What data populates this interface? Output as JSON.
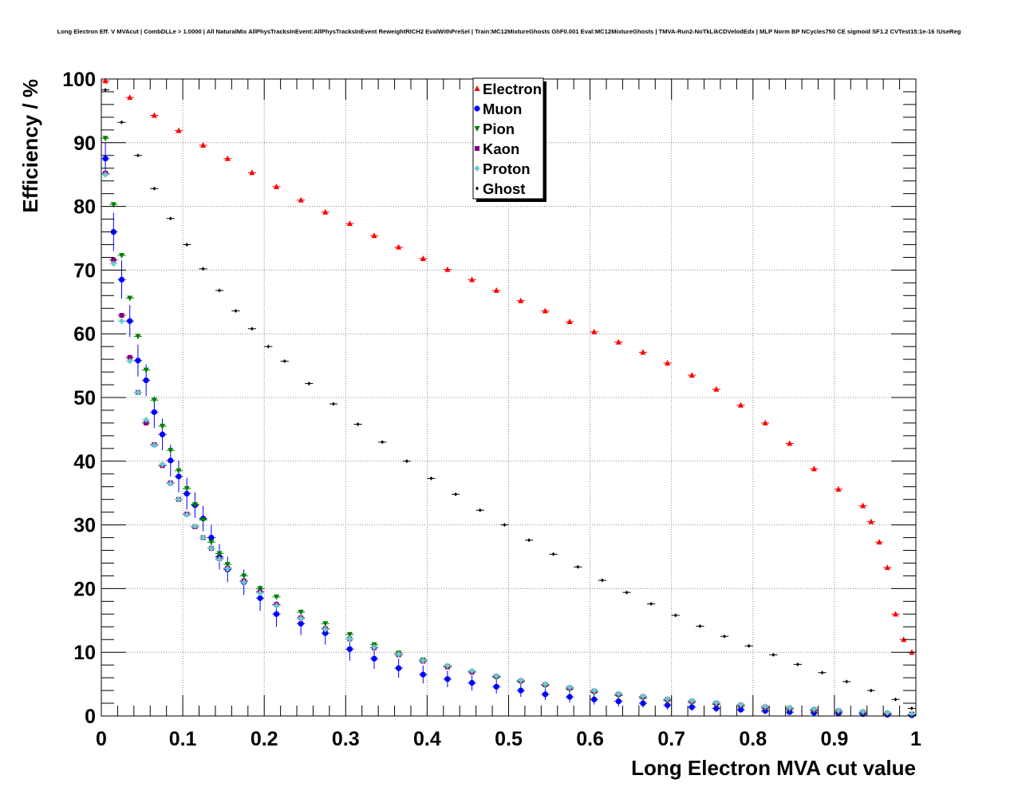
{
  "chart_data": {
    "type": "scatter",
    "title": "Long Electron Eff. V MVAcut | CombDLLe > 1.0000 | All NaturalMix AllPhysTracksInEvent:AllPhysTracksInEvent ReweightRICH2 EvalWithPreSel | Train:MC12MixtureGhosts GhF0.001 Eval:MC12MixtureGhosts | TMVA-Run2-NoTkLikCDVelodEdx | MLP Norm BP NCycles750 CE sigmoid SF1.2 CVTest15:1e-16 !UseReg",
    "xlabel": "Long Electron MVA cut value",
    "ylabel": "Efficiency / %",
    "xlim": [
      0,
      1
    ],
    "ylim": [
      0,
      100
    ],
    "x_ticks": [
      "0",
      "0.1",
      "0.2",
      "0.3",
      "0.4",
      "0.5",
      "0.6",
      "0.7",
      "0.8",
      "0.9",
      "1"
    ],
    "y_ticks": [
      "0",
      "10",
      "20",
      "30",
      "40",
      "50",
      "60",
      "70",
      "80",
      "90",
      "100"
    ],
    "grid": true,
    "legend_position": "top-center",
    "series": [
      {
        "name": "Electron",
        "color": "#ff0000",
        "marker": "triangle-up",
        "x": [
          0.005,
          0.035,
          0.065,
          0.095,
          0.125,
          0.155,
          0.185,
          0.215,
          0.245,
          0.275,
          0.305,
          0.335,
          0.365,
          0.395,
          0.425,
          0.455,
          0.485,
          0.515,
          0.545,
          0.575,
          0.605,
          0.635,
          0.665,
          0.695,
          0.725,
          0.755,
          0.785,
          0.815,
          0.845,
          0.875,
          0.905,
          0.935,
          0.945,
          0.955,
          0.965,
          0.975,
          0.985,
          0.995
        ],
        "y": [
          99.7,
          97.1,
          94.3,
          91.9,
          89.6,
          87.5,
          85.3,
          83.1,
          81.0,
          79.1,
          77.3,
          75.4,
          73.6,
          71.8,
          70.1,
          68.5,
          66.8,
          65.2,
          63.6,
          61.9,
          60.3,
          58.7,
          57.1,
          55.4,
          53.5,
          51.3,
          48.8,
          46.0,
          42.8,
          38.8,
          35.6,
          33.0,
          30.5,
          27.3,
          23.3,
          16.0,
          12.0,
          10.0
        ],
        "yerr": [
          0.1,
          0.1,
          0.1,
          0.1,
          0.1,
          0.1,
          0.1,
          0.1,
          0.1,
          0.1,
          0.1,
          0.1,
          0.1,
          0.1,
          0.1,
          0.1,
          0.1,
          0.1,
          0.1,
          0.1,
          0.1,
          0.1,
          0.1,
          0.1,
          0.1,
          0.1,
          0.1,
          0.1,
          0.1,
          0.1,
          0.1,
          0.2,
          0.2,
          0.2,
          0.3,
          0.3,
          0.3,
          0.3
        ]
      },
      {
        "name": "Muon",
        "color": "#0000ff",
        "marker": "circle",
        "x": [
          0.005,
          0.015,
          0.025,
          0.035,
          0.045,
          0.055,
          0.065,
          0.075,
          0.085,
          0.095,
          0.105,
          0.115,
          0.125,
          0.135,
          0.145,
          0.155,
          0.175,
          0.195,
          0.215,
          0.245,
          0.275,
          0.305,
          0.335,
          0.365,
          0.395,
          0.425,
          0.455,
          0.485,
          0.515,
          0.545,
          0.575,
          0.605,
          0.635,
          0.665,
          0.695,
          0.725,
          0.755,
          0.785,
          0.815,
          0.845,
          0.875,
          0.905,
          0.935,
          0.965,
          0.995
        ],
        "y": [
          87.5,
          76.0,
          68.5,
          62.0,
          55.8,
          52.7,
          47.7,
          44.2,
          40.1,
          37.6,
          34.9,
          33.1,
          31.0,
          28.0,
          25.0,
          23.0,
          21.0,
          18.5,
          16.0,
          14.5,
          13.0,
          10.5,
          9.0,
          7.5,
          6.5,
          5.8,
          5.2,
          4.6,
          4.0,
          3.4,
          3.0,
          2.6,
          2.3,
          2.0,
          1.7,
          1.4,
          1.2,
          1.0,
          0.8,
          0.6,
          0.5,
          0.4,
          0.3,
          0.2,
          0.1
        ],
        "yerr": [
          2.5,
          3.0,
          3.0,
          2.5,
          2.5,
          2.5,
          2.5,
          2.5,
          2.5,
          2.5,
          2.5,
          2.0,
          2.0,
          2.0,
          2.0,
          2.0,
          2.0,
          2.0,
          2.0,
          1.8,
          1.8,
          1.8,
          1.6,
          1.5,
          1.4,
          1.3,
          1.2,
          1.1,
          1.0,
          0.9,
          0.9,
          0.8,
          0.8,
          0.7,
          0.7,
          0.6,
          0.6,
          0.5,
          0.5,
          0.4,
          0.4,
          0.3,
          0.3,
          0.3,
          0.2
        ]
      },
      {
        "name": "Pion",
        "color": "#008000",
        "marker": "triangle-down",
        "x": [
          0.005,
          0.015,
          0.025,
          0.035,
          0.045,
          0.055,
          0.065,
          0.075,
          0.085,
          0.095,
          0.105,
          0.115,
          0.125,
          0.135,
          0.145,
          0.155,
          0.175,
          0.195,
          0.215,
          0.245,
          0.275,
          0.305,
          0.335,
          0.365,
          0.395,
          0.425,
          0.455,
          0.485,
          0.515,
          0.545,
          0.575,
          0.605,
          0.635,
          0.665,
          0.695,
          0.725,
          0.755,
          0.785,
          0.815,
          0.845,
          0.875,
          0.905,
          0.935,
          0.965,
          0.995
        ],
        "y": [
          90.7,
          80.3,
          72.3,
          65.6,
          59.6,
          54.3,
          49.6,
          45.5,
          41.7,
          38.5,
          35.7,
          33.2,
          30.8,
          27.3,
          25.5,
          23.8,
          22.0,
          20.0,
          18.7,
          16.3,
          14.5,
          12.8,
          11.2,
          9.9,
          8.8,
          7.8,
          6.9,
          6.1,
          5.4,
          4.8,
          4.2,
          3.7,
          3.2,
          2.8,
          2.4,
          2.1,
          1.8,
          1.5,
          1.2,
          1.0,
          0.8,
          0.6,
          0.4,
          0.3,
          0.2
        ],
        "yerr": [
          0.3,
          0.3,
          0.3,
          0.3,
          0.3,
          0.3,
          0.3,
          0.3,
          0.3,
          0.3,
          0.3,
          0.3,
          0.3,
          0.3,
          0.3,
          0.3,
          0.2,
          0.2,
          0.2,
          0.2,
          0.2,
          0.2,
          0.2,
          0.2,
          0.2,
          0.2,
          0.2,
          0.2,
          0.2,
          0.2,
          0.2,
          0.2,
          0.2,
          0.1,
          0.1,
          0.1,
          0.1,
          0.1,
          0.1,
          0.1,
          0.1,
          0.1,
          0.1,
          0.1,
          0.1
        ]
      },
      {
        "name": "Kaon",
        "color": "#800080",
        "marker": "square",
        "x": [
          0.005,
          0.015,
          0.025,
          0.035,
          0.045,
          0.055,
          0.065,
          0.075,
          0.085,
          0.095,
          0.105,
          0.115,
          0.125,
          0.135,
          0.145,
          0.155,
          0.175,
          0.195,
          0.215,
          0.245,
          0.275,
          0.305,
          0.335,
          0.365,
          0.395,
          0.425,
          0.455,
          0.485,
          0.515,
          0.545,
          0.575,
          0.605,
          0.635,
          0.665,
          0.695,
          0.725,
          0.755,
          0.785,
          0.815,
          0.845,
          0.875,
          0.905,
          0.935,
          0.965,
          0.995
        ],
        "y": [
          85.2,
          71.6,
          62.9,
          56.3,
          50.8,
          46.0,
          42.6,
          39.3,
          36.6,
          34.0,
          31.7,
          29.7,
          28.0,
          26.3,
          24.7,
          23.2,
          21.2,
          19.5,
          17.5,
          15.4,
          13.7,
          12.1,
          10.7,
          9.6,
          8.6,
          7.7,
          6.9,
          6.2,
          5.5,
          4.9,
          4.4,
          3.9,
          3.4,
          3.0,
          2.6,
          2.3,
          2.0,
          1.7,
          1.4,
          1.2,
          1.0,
          0.8,
          0.6,
          0.4,
          0.3
        ],
        "yerr": [
          0.3,
          0.3,
          0.3,
          0.3,
          0.3,
          0.3,
          0.3,
          0.3,
          0.3,
          0.3,
          0.3,
          0.3,
          0.3,
          0.3,
          0.3,
          0.3,
          0.2,
          0.2,
          0.2,
          0.2,
          0.2,
          0.2,
          0.2,
          0.2,
          0.2,
          0.2,
          0.2,
          0.2,
          0.2,
          0.2,
          0.2,
          0.2,
          0.2,
          0.1,
          0.1,
          0.1,
          0.1,
          0.1,
          0.1,
          0.1,
          0.1,
          0.1,
          0.1,
          0.1,
          0.1
        ]
      },
      {
        "name": "Proton",
        "color": "#66cccc",
        "marker": "diamond",
        "x": [
          0.005,
          0.015,
          0.025,
          0.035,
          0.045,
          0.055,
          0.065,
          0.075,
          0.085,
          0.095,
          0.105,
          0.115,
          0.125,
          0.135,
          0.145,
          0.155,
          0.175,
          0.195,
          0.215,
          0.245,
          0.275,
          0.305,
          0.335,
          0.365,
          0.395,
          0.425,
          0.455,
          0.485,
          0.515,
          0.545,
          0.575,
          0.605,
          0.635,
          0.665,
          0.695,
          0.725,
          0.755,
          0.785,
          0.815,
          0.845,
          0.875,
          0.905,
          0.935,
          0.965,
          0.995
        ],
        "y": [
          85.0,
          71.0,
          62.0,
          55.7,
          50.8,
          46.5,
          42.5,
          39.5,
          36.5,
          34.0,
          31.6,
          29.8,
          28.0,
          26.3,
          24.6,
          23.1,
          21.0,
          19.3,
          17.3,
          15.3,
          13.6,
          12.1,
          10.8,
          9.7,
          8.7,
          7.9,
          7.1,
          6.3,
          5.6,
          5.0,
          4.5,
          4.0,
          3.5,
          3.1,
          2.7,
          2.4,
          2.1,
          1.8,
          1.5,
          1.3,
          1.1,
          0.9,
          0.7,
          0.5,
          0.3
        ],
        "yerr": [
          0.4,
          0.4,
          0.4,
          0.4,
          0.4,
          0.4,
          0.4,
          0.4,
          0.4,
          0.4,
          0.4,
          0.4,
          0.4,
          0.4,
          0.4,
          0.4,
          0.3,
          0.3,
          0.3,
          0.3,
          0.3,
          0.3,
          0.3,
          0.3,
          0.3,
          0.3,
          0.3,
          0.2,
          0.2,
          0.2,
          0.2,
          0.2,
          0.2,
          0.2,
          0.2,
          0.2,
          0.2,
          0.2,
          0.2,
          0.2,
          0.1,
          0.1,
          0.1,
          0.1,
          0.1
        ]
      },
      {
        "name": "Ghost",
        "color": "#000000",
        "marker": "small-diamond",
        "x": [
          0.005,
          0.025,
          0.045,
          0.065,
          0.085,
          0.105,
          0.125,
          0.145,
          0.165,
          0.185,
          0.205,
          0.225,
          0.255,
          0.285,
          0.315,
          0.345,
          0.375,
          0.405,
          0.435,
          0.465,
          0.495,
          0.525,
          0.555,
          0.585,
          0.615,
          0.645,
          0.675,
          0.705,
          0.735,
          0.765,
          0.795,
          0.825,
          0.855,
          0.885,
          0.915,
          0.945,
          0.975,
          0.995
        ],
        "y": [
          98.3,
          93.2,
          88.0,
          82.8,
          78.1,
          74.0,
          70.2,
          66.8,
          63.6,
          60.8,
          58.0,
          55.7,
          52.2,
          49.0,
          45.8,
          43.0,
          40.0,
          37.3,
          34.8,
          32.3,
          30.0,
          27.6,
          25.4,
          23.4,
          21.3,
          19.4,
          17.6,
          15.8,
          14.1,
          12.5,
          11.0,
          9.6,
          8.1,
          6.8,
          5.4,
          4.0,
          2.6,
          1.2
        ],
        "yerr": [
          0.1,
          0.1,
          0.1,
          0.1,
          0.1,
          0.1,
          0.1,
          0.1,
          0.1,
          0.1,
          0.1,
          0.1,
          0.1,
          0.1,
          0.1,
          0.1,
          0.1,
          0.1,
          0.1,
          0.1,
          0.1,
          0.1,
          0.1,
          0.1,
          0.1,
          0.1,
          0.1,
          0.1,
          0.1,
          0.1,
          0.1,
          0.1,
          0.1,
          0.1,
          0.1,
          0.1,
          0.1,
          0.1
        ]
      }
    ]
  }
}
